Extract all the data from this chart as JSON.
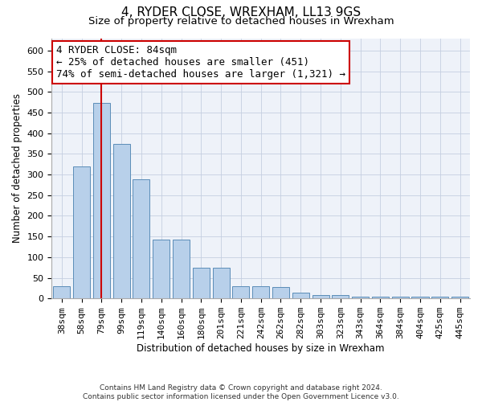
{
  "title": "4, RYDER CLOSE, WREXHAM, LL13 9GS",
  "subtitle": "Size of property relative to detached houses in Wrexham",
  "xlabel": "Distribution of detached houses by size in Wrexham",
  "ylabel": "Number of detached properties",
  "categories": [
    "38sqm",
    "58sqm",
    "79sqm",
    "99sqm",
    "119sqm",
    "140sqm",
    "160sqm",
    "180sqm",
    "201sqm",
    "221sqm",
    "242sqm",
    "262sqm",
    "282sqm",
    "303sqm",
    "323sqm",
    "343sqm",
    "364sqm",
    "384sqm",
    "404sqm",
    "425sqm",
    "445sqm"
  ],
  "values": [
    30,
    320,
    474,
    374,
    288,
    143,
    143,
    75,
    75,
    30,
    30,
    27,
    15,
    8,
    8,
    5,
    5,
    5,
    5,
    5,
    5
  ],
  "bar_color": "#b8d0ea",
  "bar_edge_color": "#5b8db8",
  "vline_x": 2,
  "vline_color": "#cc0000",
  "annotation_line1": "4 RYDER CLOSE: 84sqm",
  "annotation_line2": "← 25% of detached houses are smaller (451)",
  "annotation_line3": "74% of semi-detached houses are larger (1,321) →",
  "annotation_box_color": "#ffffff",
  "annotation_box_edge": "#cc0000",
  "ylim": [
    0,
    630
  ],
  "yticks": [
    0,
    50,
    100,
    150,
    200,
    250,
    300,
    350,
    400,
    450,
    500,
    550,
    600
  ],
  "footnote_line1": "Contains HM Land Registry data © Crown copyright and database right 2024.",
  "footnote_line2": "Contains public sector information licensed under the Open Government Licence v3.0.",
  "plot_bg": "#eef2f9",
  "title_fontsize": 11,
  "subtitle_fontsize": 9.5,
  "axis_label_fontsize": 8.5,
  "tick_fontsize": 8,
  "annot_fontsize": 9,
  "footnote_fontsize": 6.5
}
